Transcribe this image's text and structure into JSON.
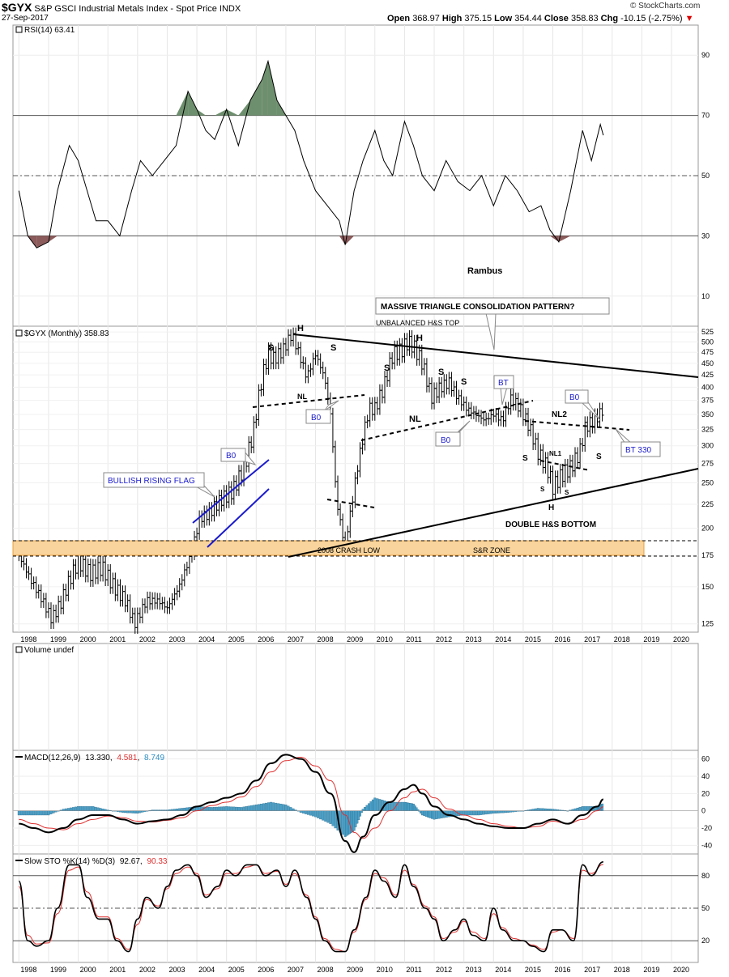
{
  "header": {
    "ticker": "$GYX",
    "name": "S&P GSCI Industrial Metals Index - Spot Price",
    "exchange": "INDX",
    "date": "27-Sep-2017",
    "open_label": "Open",
    "open": "368.97",
    "high_label": "High",
    "high": "375.15",
    "low_label": "Low",
    "low": "354.44",
    "close_label": "Close",
    "close": "358.83",
    "chg_label": "Chg",
    "chg": "-10.15 (-2.75%)",
    "brand": "© StockCharts.com"
  },
  "colors": {
    "price": "#000000",
    "annotation_blue": "#1a1acc",
    "sr_zone": "#f9d49c",
    "sr_zone_border": "#e8a040",
    "rsi_over": "#6e8f6e",
    "rsi_under": "#8b5a5a",
    "macd_hist": "#4aa0c8",
    "signal_red": "#e03030"
  },
  "x_axis_years": [
    "1998",
    "1999",
    "2000",
    "2001",
    "2002",
    "2003",
    "2004",
    "2005",
    "2006",
    "2007",
    "2008",
    "2009",
    "2010",
    "2011",
    "2012",
    "2013",
    "2014",
    "2015",
    "2016",
    "2017",
    "2018",
    "2019",
    "2020"
  ],
  "chart_data": [
    {
      "type": "line",
      "panel": "rsi",
      "legend": "RSI(14) 63.41",
      "ylim": [
        0,
        100
      ],
      "ticks": [
        10,
        30,
        50,
        70,
        90
      ],
      "reference_lines": [
        30,
        50,
        70
      ],
      "x": [
        1998.0,
        1998.3,
        1998.6,
        1999.0,
        1999.3,
        1999.7,
        2000.0,
        2000.3,
        2000.6,
        2001.0,
        2001.4,
        2001.8,
        2002.1,
        2002.5,
        2002.9,
        2003.3,
        2003.7,
        2004.0,
        2004.3,
        2004.6,
        2005.0,
        2005.4,
        2005.8,
        2006.2,
        2006.4,
        2006.7,
        2007.0,
        2007.3,
        2007.6,
        2008.0,
        2008.4,
        2008.8,
        2009.0,
        2009.3,
        2009.6,
        2010.0,
        2010.3,
        2010.6,
        2011.0,
        2011.3,
        2011.6,
        2012.0,
        2012.4,
        2012.8,
        2013.2,
        2013.6,
        2014.0,
        2014.4,
        2014.8,
        2015.2,
        2015.6,
        2015.9,
        2016.2,
        2016.6,
        2017.0,
        2017.3,
        2017.6,
        2017.7
      ],
      "values": [
        45,
        30,
        26,
        28,
        45,
        60,
        55,
        45,
        35,
        35,
        30,
        45,
        55,
        50,
        55,
        60,
        78,
        72,
        65,
        62,
        72,
        60,
        75,
        82,
        88,
        75,
        70,
        65,
        55,
        45,
        40,
        35,
        27,
        45,
        55,
        65,
        55,
        50,
        68,
        60,
        50,
        45,
        55,
        48,
        45,
        50,
        40,
        50,
        45,
        38,
        40,
        32,
        28,
        45,
        65,
        55,
        67,
        63.41
      ]
    },
    {
      "type": "bar",
      "panel": "price",
      "legend": "$GYX (Monthly) 358.83",
      "scale": "log",
      "ylim": [
        120,
        540
      ],
      "ticks": [
        125,
        150,
        175,
        200,
        225,
        250,
        275,
        300,
        325,
        350,
        375,
        400,
        425,
        450,
        475,
        500,
        525
      ],
      "x": [
        1998.0,
        1998.4,
        1998.8,
        1999.1,
        1999.4,
        1999.7,
        2000.0,
        2000.4,
        2000.8,
        2001.2,
        2001.6,
        2001.9,
        2002.3,
        2002.7,
        2003.0,
        2003.4,
        2003.8,
        2004.1,
        2004.4,
        2004.8,
        2005.2,
        2005.6,
        2005.9,
        2006.2,
        2006.4,
        2006.6,
        2006.9,
        2007.2,
        2007.4,
        2007.7,
        2008.0,
        2008.3,
        2008.5,
        2008.7,
        2008.9,
        2009.0,
        2009.2,
        2009.5,
        2009.8,
        2010.0,
        2010.3,
        2010.6,
        2010.9,
        2011.1,
        2011.3,
        2011.6,
        2011.9,
        2012.2,
        2012.5,
        2012.8,
        2013.1,
        2013.4,
        2013.7,
        2014.0,
        2014.3,
        2014.6,
        2014.9,
        2015.2,
        2015.5,
        2015.8,
        2016.0,
        2016.3,
        2016.6,
        2016.9,
        2017.1,
        2017.4,
        2017.7
      ],
      "values": [
        175,
        155,
        140,
        128,
        138,
        155,
        170,
        160,
        165,
        150,
        140,
        125,
        140,
        140,
        135,
        150,
        175,
        210,
        215,
        230,
        240,
        270,
        320,
        420,
        470,
        460,
        480,
        520,
        480,
        420,
        470,
        420,
        350,
        230,
        195,
        185,
        220,
        290,
        360,
        360,
        400,
        470,
        480,
        500,
        490,
        450,
        380,
        400,
        410,
        380,
        360,
        350,
        340,
        350,
        340,
        380,
        360,
        330,
        290,
        270,
        245,
        260,
        270,
        290,
        330,
        340,
        358.83
      ]
    },
    {
      "type": "area",
      "panel": "volume",
      "legend": "Volume undef",
      "x": [],
      "values": []
    },
    {
      "type": "line",
      "panel": "macd",
      "legend_label": "MACD(12,26,9)",
      "legend_macd": "13.330",
      "legend_signal": "4.581",
      "legend_hist": "8.749",
      "ylim": [
        -50,
        70
      ],
      "ticks": [
        -40,
        -20,
        0,
        20,
        40,
        60
      ],
      "x": [
        1998.0,
        1998.5,
        1999.0,
        1999.5,
        2000.0,
        2000.5,
        2001.0,
        2001.5,
        2002.0,
        2002.5,
        2003.0,
        2003.5,
        2004.0,
        2004.5,
        2005.0,
        2005.5,
        2006.0,
        2006.5,
        2007.0,
        2007.5,
        2008.0,
        2008.5,
        2009.0,
        2009.3,
        2009.6,
        2010.0,
        2010.5,
        2011.0,
        2011.3,
        2011.6,
        2012.0,
        2012.5,
        2013.0,
        2013.5,
        2014.0,
        2014.5,
        2015.0,
        2015.5,
        2016.0,
        2016.5,
        2017.0,
        2017.5,
        2017.7
      ],
      "series": [
        {
          "name": "MACD",
          "values": [
            -15,
            -20,
            -25,
            -20,
            -10,
            -5,
            -5,
            -10,
            -15,
            -12,
            -10,
            -5,
            5,
            10,
            15,
            20,
            35,
            55,
            65,
            60,
            45,
            20,
            -35,
            -48,
            -30,
            -5,
            10,
            25,
            30,
            20,
            5,
            -5,
            -10,
            -15,
            -18,
            -20,
            -20,
            -15,
            -10,
            -15,
            -5,
            5,
            13.33
          ]
        },
        {
          "name": "Signal",
          "values": [
            -10,
            -15,
            -20,
            -22,
            -15,
            -10,
            -6,
            -8,
            -12,
            -13,
            -11,
            -8,
            0,
            6,
            10,
            16,
            28,
            45,
            58,
            62,
            52,
            35,
            -5,
            -25,
            -32,
            -20,
            0,
            15,
            22,
            25,
            15,
            2,
            -5,
            -10,
            -15,
            -18,
            -20,
            -18,
            -12,
            -15,
            -10,
            0,
            4.581
          ]
        }
      ]
    },
    {
      "type": "line",
      "panel": "stochastic",
      "legend_label": "Slow STO %K(14) %D(3)",
      "legend_k": "92.67",
      "legend_d": "90.33",
      "ylim": [
        0,
        100
      ],
      "ticks": [
        20,
        50,
        80
      ],
      "reference_lines": [
        20,
        50,
        80
      ],
      "x": [
        1998.0,
        1998.3,
        1998.6,
        1999.0,
        1999.3,
        1999.7,
        2000.0,
        2000.3,
        2000.7,
        2001.0,
        2001.3,
        2001.7,
        2002.0,
        2002.3,
        2002.7,
        2003.0,
        2003.3,
        2003.7,
        2004.0,
        2004.3,
        2004.7,
        2005.0,
        2005.3,
        2005.7,
        2006.0,
        2006.3,
        2006.7,
        2007.0,
        2007.3,
        2007.7,
        2008.0,
        2008.3,
        2008.7,
        2009.0,
        2009.3,
        2009.7,
        2010.0,
        2010.3,
        2010.7,
        2011.0,
        2011.3,
        2011.7,
        2012.0,
        2012.3,
        2012.7,
        2013.0,
        2013.3,
        2013.7,
        2014.0,
        2014.3,
        2014.7,
        2015.0,
        2015.3,
        2015.7,
        2016.0,
        2016.3,
        2016.7,
        2017.0,
        2017.3,
        2017.7
      ],
      "series": [
        {
          "name": "%K",
          "values": [
            75,
            20,
            15,
            20,
            50,
            90,
            90,
            60,
            40,
            40,
            20,
            10,
            40,
            60,
            50,
            70,
            85,
            90,
            80,
            60,
            70,
            85,
            80,
            90,
            90,
            80,
            85,
            70,
            85,
            60,
            40,
            20,
            10,
            10,
            30,
            60,
            85,
            75,
            60,
            90,
            70,
            50,
            40,
            20,
            30,
            40,
            25,
            20,
            50,
            30,
            20,
            20,
            15,
            10,
            30,
            30,
            20,
            90,
            80,
            92.67
          ]
        },
        {
          "name": "%D",
          "values": [
            70,
            25,
            17,
            18,
            45,
            85,
            88,
            65,
            42,
            42,
            22,
            12,
            35,
            58,
            52,
            68,
            82,
            88,
            82,
            62,
            68,
            82,
            82,
            88,
            90,
            82,
            84,
            72,
            82,
            62,
            42,
            22,
            12,
            10,
            28,
            58,
            82,
            78,
            62,
            85,
            72,
            52,
            42,
            22,
            28,
            38,
            28,
            22,
            45,
            32,
            22,
            20,
            16,
            12,
            28,
            30,
            22,
            85,
            82,
            90.33
          ]
        }
      ]
    }
  ],
  "annotations": {
    "rsi_author": "Rambus",
    "triangle_callout": "MASSIVE TRIANGLE CONSOLIDATION PATTERN?",
    "unbalanced": "UNBALANCED H&S TOP",
    "bull_flag": "BULLISH RISING FLAG",
    "crash_low": "2008 CRASH LOW",
    "sr_zone": "S&R ZONE",
    "double_hs": "DOUBLE H&S BOTTOM",
    "bt330": "BT 330",
    "bo": "B0",
    "bt": "BT",
    "nl": "NL",
    "nl1": "NL1",
    "nl2": "NL2",
    "s": "S",
    "h": "H"
  }
}
